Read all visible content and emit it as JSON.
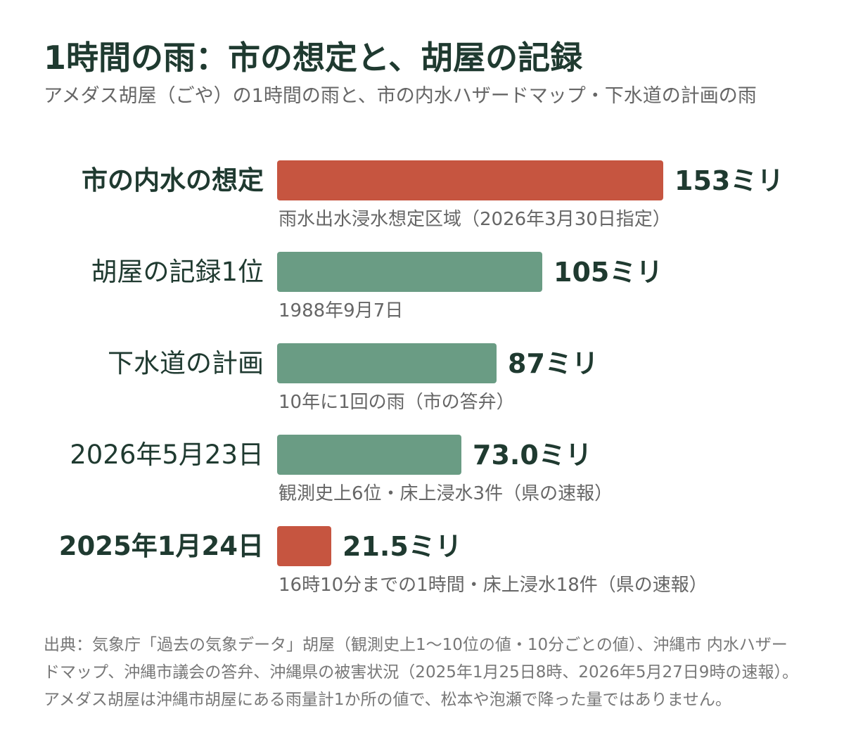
{
  "title": "1時間の雨：市の想定と、胡屋の記録",
  "subtitle": "アメダス胡屋（ごや）の1時間の雨と、市の内水ハザードマップ・下水道の計画の雨",
  "colors": {
    "highlight": "#c65540",
    "normal": "#6a9c84",
    "text": "#1f3a30",
    "note": "#666666"
  },
  "chart_data": {
    "type": "bar",
    "orientation": "horizontal",
    "unit": "ミリ",
    "xlim": [
      0,
      153
    ],
    "categories": [
      "市の内水の想定",
      "胡屋の記録1位",
      "下水道の計画",
      "2026年5月23日",
      "2025年1月24日"
    ],
    "values": [
      153,
      105,
      87,
      73.0,
      21.5
    ],
    "value_labels": [
      "153ミリ",
      "105ミリ",
      "87ミリ",
      "73.0ミリ",
      "21.5ミリ"
    ],
    "notes": [
      "雨水出水浸水想定区域（2026年3月30日指定）",
      "1988年9月7日",
      "10年に1回の雨（市の答弁）",
      "観測史上6位・床上浸水3件（県の速報）",
      "16時10分までの1時間・床上浸水18件（県の速報）"
    ],
    "highlighted": [
      true,
      false,
      false,
      false,
      true
    ]
  },
  "source": "出典：気象庁「過去の気象データ」胡屋（観測史上1～10位の値・10分ごとの値）、沖縄市 内水ハザードマップ、沖縄市議会の答弁、沖縄県の被害状況（2025年1月25日8時、2026年5月27日9時の速報）。アメダス胡屋は沖縄市胡屋にある雨量計1か所の値で、松本や泡瀬で降った量ではありません。"
}
